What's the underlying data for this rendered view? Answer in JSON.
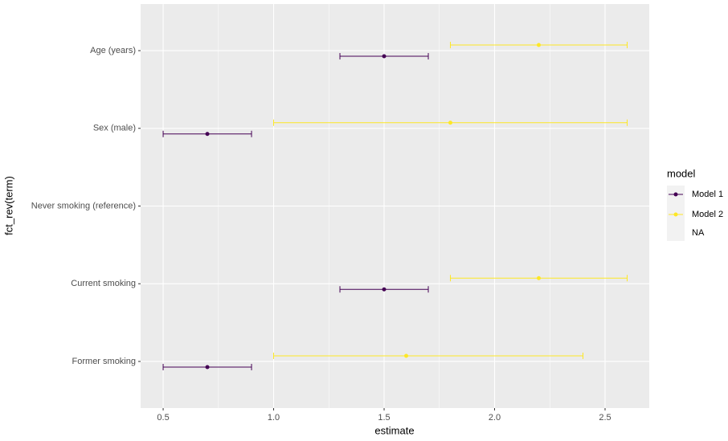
{
  "chart_data": {
    "type": "errorbar",
    "x_label": "estimate",
    "y_label": "fct_rev(term)",
    "categories": [
      "Age (years)",
      "Sex (male)",
      "Never smoking (reference)",
      "Current smoking",
      "Former smoking"
    ],
    "series": [
      {
        "name": "Model 1",
        "color": "#440154",
        "values": [
          1.5,
          0.7,
          null,
          1.5,
          0.7
        ],
        "lower": [
          1.3,
          0.5,
          null,
          1.3,
          0.5
        ],
        "upper": [
          1.7,
          0.9,
          null,
          1.7,
          0.9
        ]
      },
      {
        "name": "Model 2",
        "color": "#FDE725",
        "values": [
          2.2,
          1.8,
          null,
          2.2,
          1.6
        ],
        "lower": [
          1.8,
          1.0,
          null,
          1.8,
          1.0
        ],
        "upper": [
          2.6,
          2.6,
          null,
          2.6,
          2.4
        ]
      }
    ],
    "legend_title": "model",
    "legend_na": "NA",
    "xlim": [
      0.398,
      2.7
    ],
    "xticks": [
      0.5,
      {
        "value": 1.0,
        "label": "1.0"
      },
      1.5,
      {
        "value": 2.0,
        "label": "2.0"
      },
      2.5
    ],
    "grid": true
  }
}
